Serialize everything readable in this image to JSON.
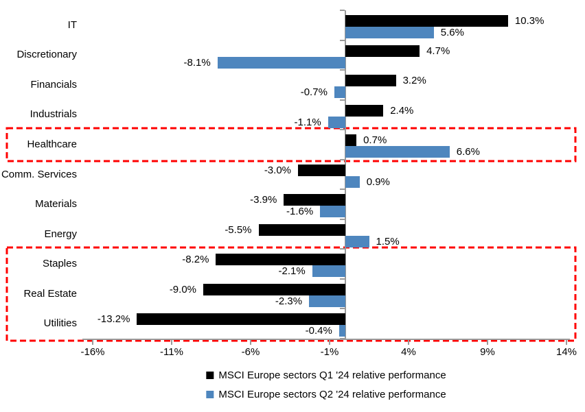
{
  "chart_data": {
    "type": "bar",
    "orientation": "horizontal",
    "title": "",
    "categories": [
      "IT",
      "Discretionary",
      "Financials",
      "Industrials",
      "Healthcare",
      "Comm. Services",
      "Materials",
      "Energy",
      "Staples",
      "Real Estate",
      "Utilities"
    ],
    "series": [
      {
        "name": "MSCI Europe sectors Q1 '24 relative performance",
        "color": "#000000",
        "values": [
          10.3,
          4.7,
          3.2,
          2.4,
          0.7,
          -3.0,
          -3.9,
          -5.5,
          -8.2,
          -9.0,
          -13.2
        ],
        "value_labels": [
          "10.3%",
          "4.7%",
          "3.2%",
          "2.4%",
          "0.7%",
          "-3.0%",
          "-3.9%",
          "-5.5%",
          "-8.2%",
          "-9.0%",
          "-13.2%"
        ]
      },
      {
        "name": "MSCI Europe sectors Q2 '24 relative performance",
        "color": "#4E86BE",
        "values": [
          5.6,
          -8.1,
          -0.7,
          -1.1,
          6.6,
          0.9,
          -1.6,
          1.5,
          -2.1,
          -2.3,
          -0.4
        ],
        "value_labels": [
          "5.6%",
          "-8.1%",
          "-0.7%",
          "-1.1%",
          "6.6%",
          "0.9%",
          "-1.6%",
          "1.5%",
          "-2.1%",
          "-2.3%",
          "-0.4%"
        ]
      }
    ],
    "x_axis": {
      "tick_labels": [
        "-16%",
        "-11%",
        "-6%",
        "-1%",
        "4%",
        "9%",
        "14%"
      ],
      "tick_values": [
        -16,
        -11,
        -6,
        -1,
        4,
        9,
        14
      ],
      "min": -16.7,
      "max": 14.2,
      "unit": "%"
    },
    "grid": false,
    "legend_position": "bottom",
    "highlight_boxes": [
      {
        "categories": [
          "Healthcare"
        ],
        "color": "#FF0000",
        "style": "dashed"
      },
      {
        "categories": [
          "Staples",
          "Real Estate",
          "Utilities"
        ],
        "color": "#FF0000",
        "style": "dashed"
      }
    ],
    "axis_color": "#9a9a9a"
  },
  "legend": {
    "items": [
      {
        "label": "MSCI Europe sectors Q1 '24 relative performance",
        "color": "#000000"
      },
      {
        "label": "MSCI Europe sectors Q2 '24 relative performance",
        "color": "#4E86BE"
      }
    ]
  }
}
